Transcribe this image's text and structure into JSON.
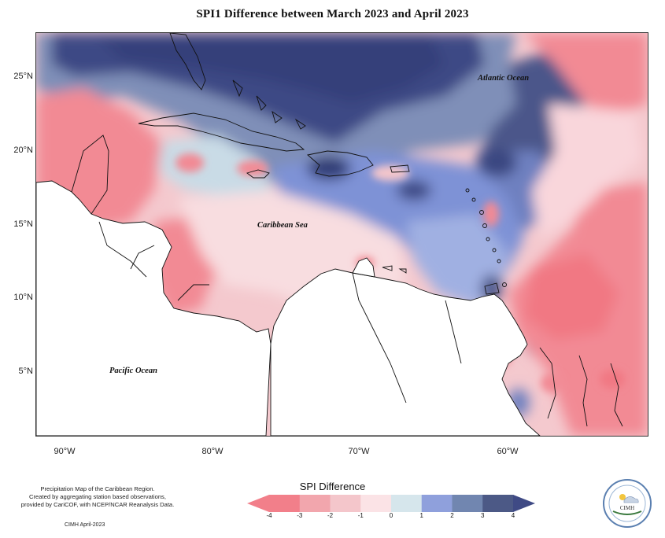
{
  "title": "SPI1 Difference between March 2023 and April 2023",
  "map": {
    "labels": {
      "atlantic": "Atlantic Ocean",
      "caribbean": "Caribbean Sea",
      "pacific": "Pacific Ocean"
    },
    "y_axis": [
      "25°N",
      "20°N",
      "15°N",
      "10°N",
      "5°N"
    ],
    "x_axis": [
      "90°W",
      "80°W",
      "70°W",
      "60°W"
    ]
  },
  "legend": {
    "title": "SPI Difference",
    "ticks": [
      "-4",
      "-3",
      "-2",
      "-1",
      "0",
      "1",
      "2",
      "3",
      "4"
    ],
    "colors": [
      "#f27f8a",
      "#f2a6ad",
      "#f4c6cb",
      "#fbe3e6",
      "#d6e6ec",
      "#8fa0dc",
      "#7186b0",
      "#4c5986"
    ],
    "arrow_left_color": "#f27f8a",
    "arrow_right_color": "#3f4a85"
  },
  "footer": {
    "line1": "Precipitation Map of the Caribbean Region.",
    "line2": "Created by aggregating station based observations,",
    "line3": "provided by CariCOF, with NCEP/NCAR Reanalysis Data.",
    "credit": "CIMH April-2023"
  },
  "logo": {
    "name": "CIMH"
  }
}
